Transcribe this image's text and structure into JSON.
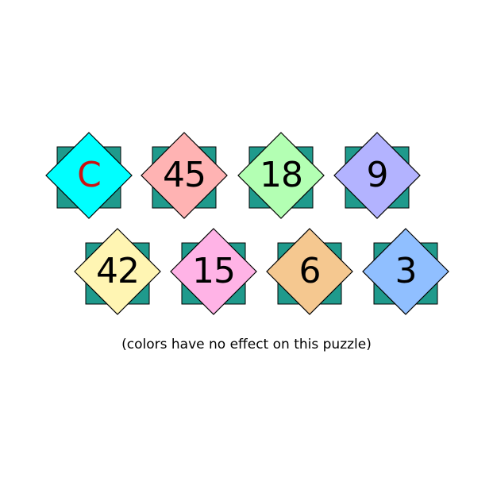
{
  "palette": {
    "back_square": "#1f9a8c",
    "outline": "#000000",
    "text": "#000000"
  },
  "tiles": {
    "t0": {
      "label": "C",
      "color": "#00ffff",
      "text_color": "#cc1111"
    },
    "t1": {
      "label": "45",
      "color": "#ffb3b3",
      "text_color": "#000000"
    },
    "t2": {
      "label": "18",
      "color": "#b3ffb3",
      "text_color": "#000000"
    },
    "t3": {
      "label": "9",
      "color": "#b3b3ff",
      "text_color": "#000000"
    },
    "t4": {
      "label": "42",
      "color": "#fff5b3",
      "text_color": "#000000"
    },
    "t5": {
      "label": "15",
      "color": "#ffb3e6",
      "text_color": "#000000"
    },
    "t6": {
      "label": "6",
      "color": "#f5c890",
      "text_color": "#000000"
    },
    "t7": {
      "label": "3",
      "color": "#90bfff",
      "text_color": "#000000"
    }
  },
  "caption": "(colors have no effect on this puzzle)"
}
